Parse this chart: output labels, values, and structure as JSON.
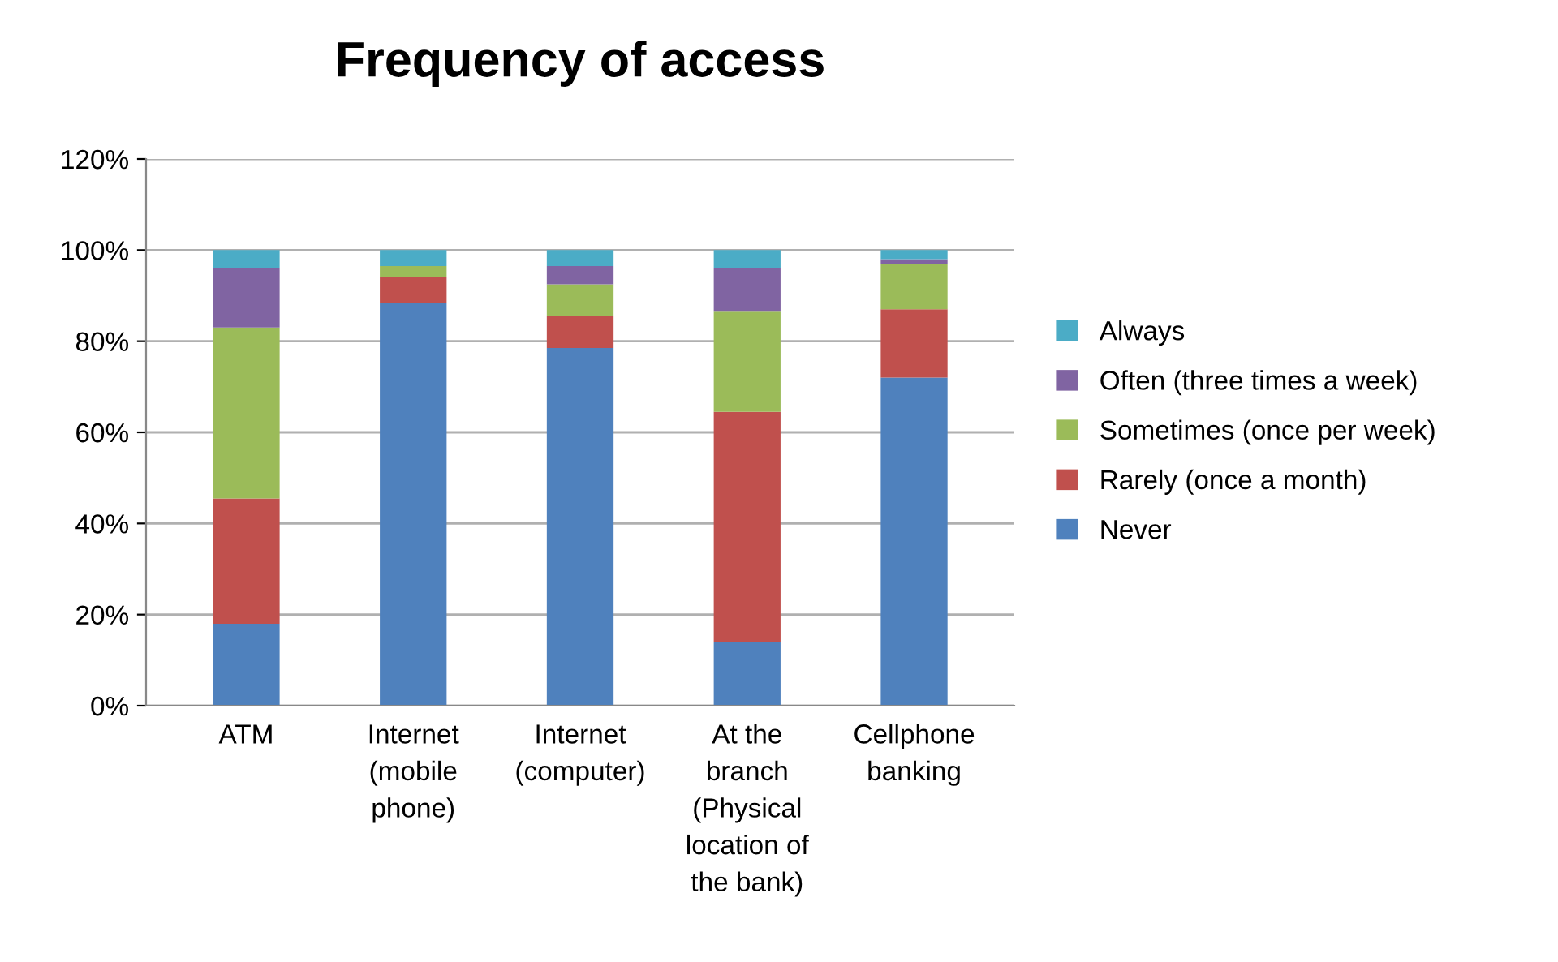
{
  "chart_data": {
    "type": "bar",
    "title": "Frequency of access",
    "stacked": true,
    "categories": [
      "ATM",
      "Internet\n(mobile\nphone)",
      "Internet\n(computer)",
      "At the\nbranch\n(Physical\nlocation of\nthe bank)",
      "Cellphone\nbanking"
    ],
    "series": [
      {
        "name": "Never",
        "color": "#4f81bd",
        "values": [
          18,
          88.5,
          78.5,
          14,
          72
        ]
      },
      {
        "name": "Rarely (once a month)",
        "color": "#c0504d",
        "values": [
          27.5,
          5.5,
          7,
          50.5,
          15
        ]
      },
      {
        "name": "Sometimes (once per week)",
        "color": "#9bbb59",
        "values": [
          37.5,
          2.5,
          7,
          22,
          10
        ]
      },
      {
        "name": "Often (three times a week)",
        "color": "#8064a2",
        "values": [
          13,
          0,
          4,
          9.5,
          1
        ]
      },
      {
        "name": "Always",
        "color": "#4bacc6",
        "values": [
          4,
          3.5,
          3.5,
          4,
          2
        ]
      }
    ],
    "ylim": [
      0,
      120
    ],
    "yticks": [
      {
        "value": 0,
        "label": "0%"
      },
      {
        "value": 20,
        "label": "20%"
      },
      {
        "value": 40,
        "label": "40%"
      },
      {
        "value": 60,
        "label": "60%"
      },
      {
        "value": 80,
        "label": "80%"
      },
      {
        "value": 100,
        "label": "100%"
      },
      {
        "value": 120,
        "label": "120%"
      }
    ],
    "grid": "y",
    "legend": "right"
  }
}
